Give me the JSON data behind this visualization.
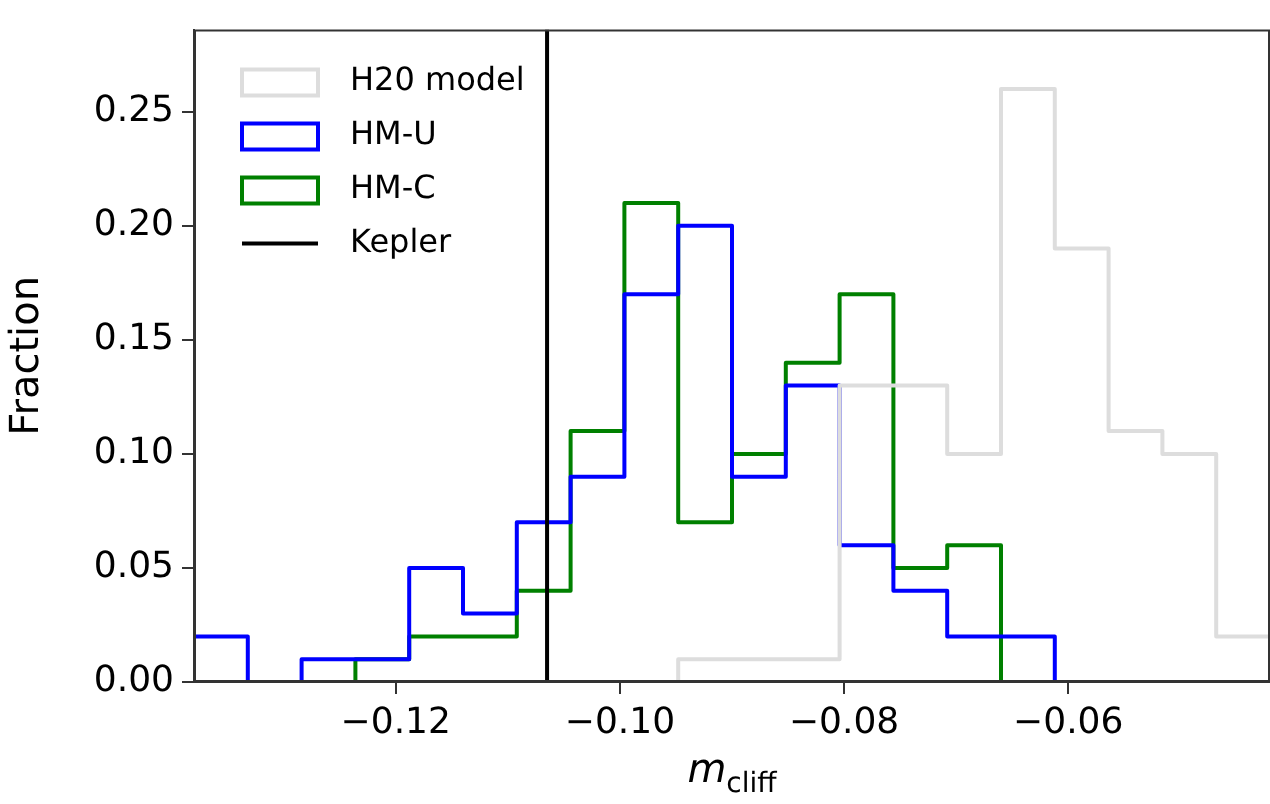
{
  "chart_data": {
    "type": "histogram",
    "xlabel": "m$_{cliff}$",
    "ylabel": "Fraction",
    "bins": [
      -0.138,
      -0.1332,
      -0.1284,
      -0.1236,
      -0.1188,
      -0.114,
      -0.1092,
      -0.1044,
      -0.0996,
      -0.0948,
      -0.09,
      -0.0852,
      -0.0804,
      -0.0756,
      -0.0708,
      -0.066,
      -0.0612,
      -0.0564,
      -0.0516,
      -0.0468,
      -0.042
    ],
    "series": [
      {
        "name": "H20 model",
        "color": "#dddddd",
        "values": [
          0,
          0,
          0,
          0,
          0,
          0,
          0,
          0,
          0,
          0.01,
          0.01,
          0.01,
          0.13,
          0.13,
          0.1,
          0.26,
          0.19,
          0.11,
          0.1,
          0.02
        ]
      },
      {
        "name": "HM-U",
        "color": "#0000ff",
        "values": [
          0.02,
          0,
          0.01,
          0.01,
          0.05,
          0.03,
          0.07,
          0.09,
          0.17,
          0.2,
          0.09,
          0.13,
          0.06,
          0.04,
          0.02,
          0.02,
          0,
          0,
          0,
          0
        ]
      },
      {
        "name": "HM-C",
        "color": "#008000",
        "values": [
          0,
          0,
          0,
          0.01,
          0.02,
          0.02,
          0.04,
          0.11,
          0.21,
          0.07,
          0.1,
          0.14,
          0.17,
          0.05,
          0.06,
          0,
          0,
          0,
          0,
          0
        ]
      }
    ],
    "ref_lines": [
      {
        "axis": "x",
        "value": -0.1065,
        "label": "Kepler",
        "color": "#000000"
      }
    ],
    "xlim": [
      -0.138,
      -0.042
    ],
    "ylim": [
      0,
      0.286
    ],
    "xticks": [
      {
        "value": -0.12,
        "label": "−0.12"
      },
      {
        "value": -0.1,
        "label": "−0.10"
      },
      {
        "value": -0.08,
        "label": "−0.08"
      },
      {
        "value": -0.06,
        "label": "−0.06"
      }
    ],
    "yticks": [
      {
        "value": 0,
        "label": "0.00"
      },
      {
        "value": 0.05,
        "label": "0.05"
      },
      {
        "value": 0.1,
        "label": "0.10"
      },
      {
        "value": 0.15,
        "label": "0.15"
      },
      {
        "value": 0.2,
        "label": "0.20"
      },
      {
        "value": 0.25,
        "label": "0.25"
      }
    ],
    "grid": false,
    "legend": "top left"
  }
}
